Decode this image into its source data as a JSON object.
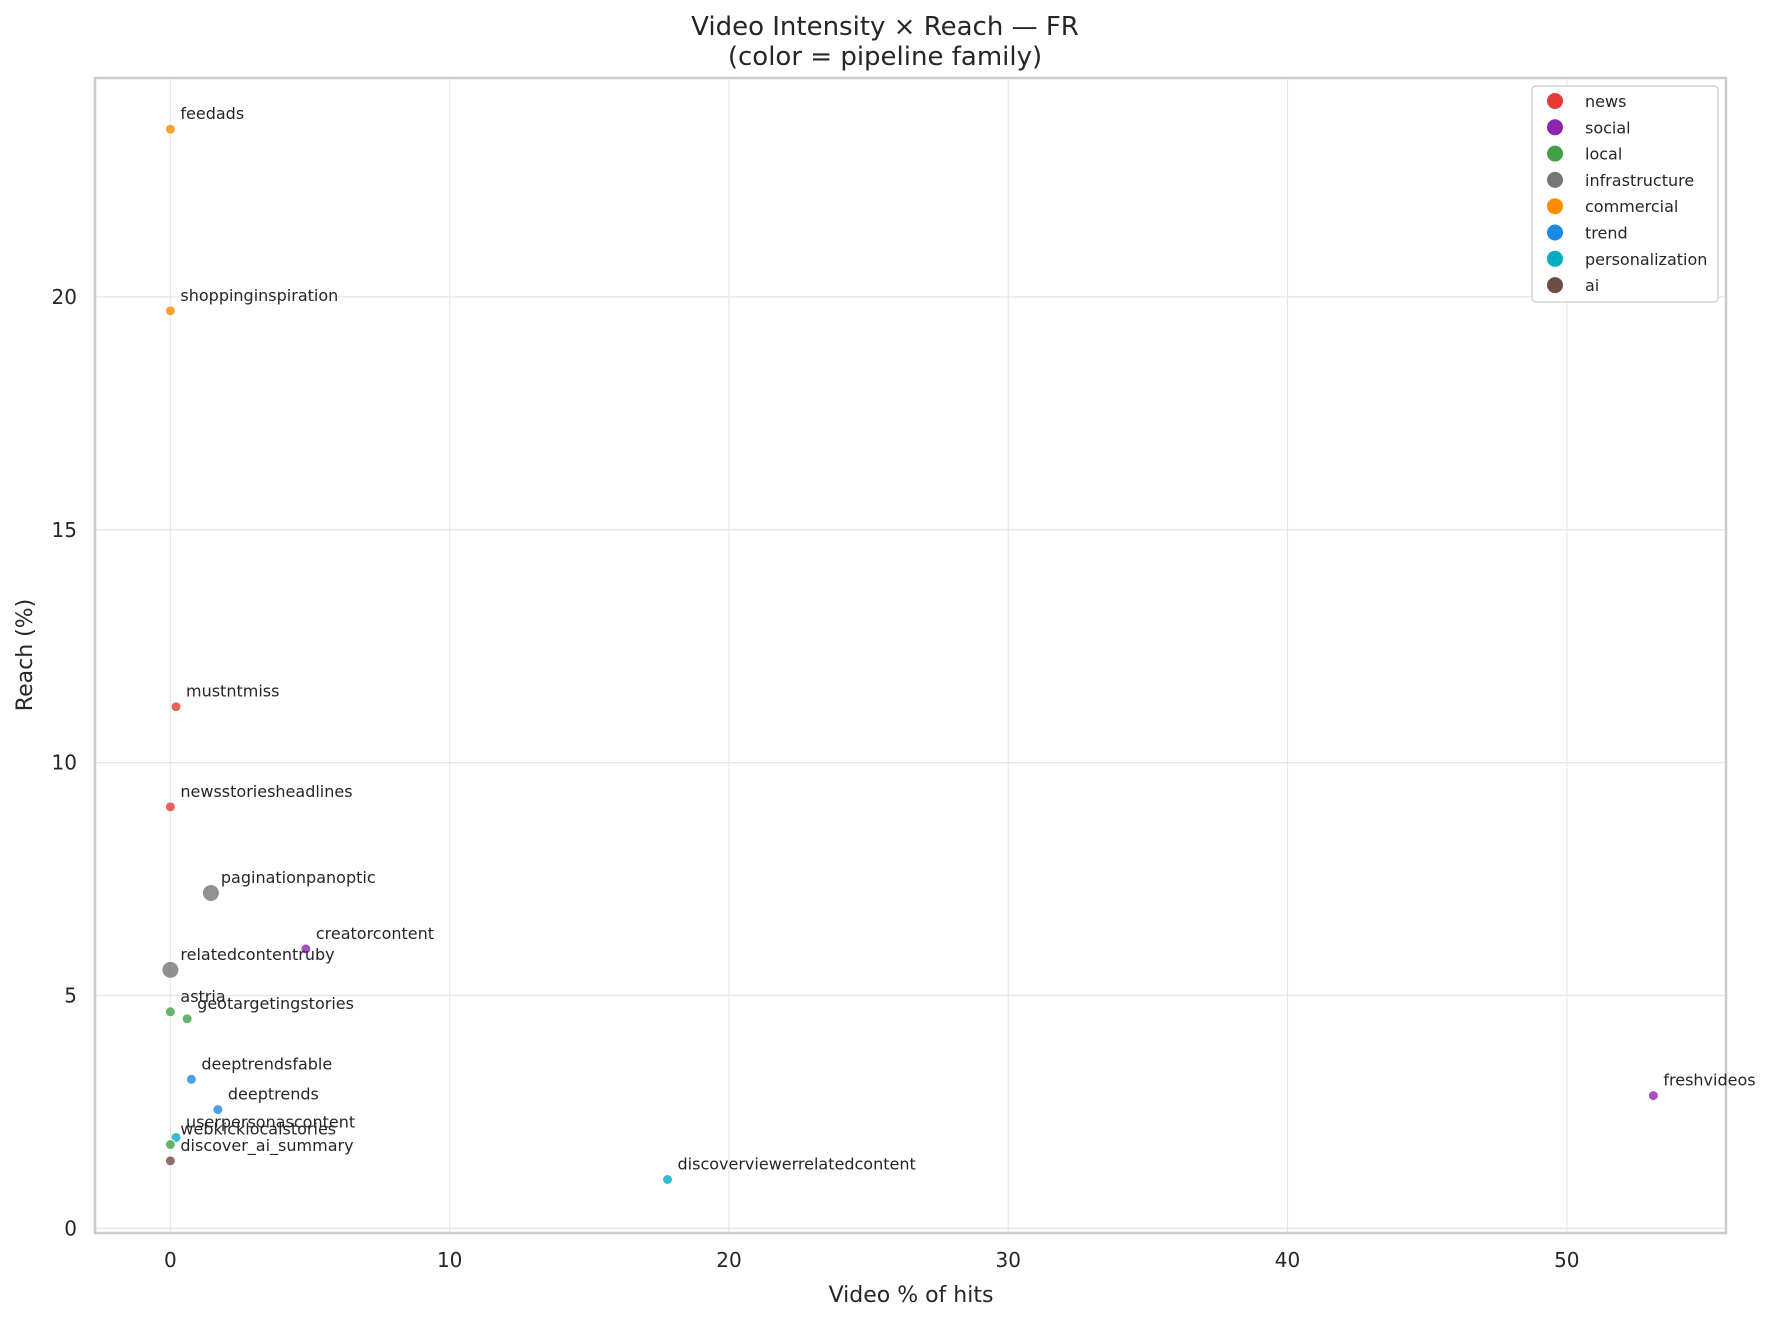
{
  "chart_data": {
    "type": "scatter",
    "title": "Video Intensity × Reach — FR",
    "subtitle": "(color = pipeline family)",
    "xlabel": "Video % of hits",
    "ylabel": "Reach (%)",
    "xlim": [
      -2.7,
      55.7
    ],
    "ylim": [
      -0.1,
      24.7
    ],
    "xticks": [
      0,
      10,
      20,
      30,
      40,
      50
    ],
    "yticks": [
      0,
      5,
      10,
      15,
      20
    ],
    "grid": true,
    "legend_position": "top-right",
    "families": [
      {
        "name": "news",
        "color": "#e53935"
      },
      {
        "name": "social",
        "color": "#8e24aa"
      },
      {
        "name": "local",
        "color": "#43a047"
      },
      {
        "name": "infrastructure",
        "color": "#757575"
      },
      {
        "name": "commercial",
        "color": "#fb8c00"
      },
      {
        "name": "trend",
        "color": "#1e88e5"
      },
      {
        "name": "personalization",
        "color": "#00acc1"
      },
      {
        "name": "ai",
        "color": "#6d4c41"
      }
    ],
    "points": [
      {
        "label": "feedads",
        "x": 0.0,
        "y": 23.6,
        "family": "commercial",
        "size": "small"
      },
      {
        "label": "shoppinginspiration",
        "x": 0.0,
        "y": 19.7,
        "family": "commercial",
        "size": "small"
      },
      {
        "label": "mustntmiss",
        "x": 0.2,
        "y": 11.2,
        "family": "news",
        "size": "small"
      },
      {
        "label": "newsstoriesheadlines",
        "x": 0.0,
        "y": 9.05,
        "family": "news",
        "size": "small"
      },
      {
        "label": "paginationpanoptic",
        "x": 1.45,
        "y": 7.2,
        "family": "infrastructure",
        "size": "large"
      },
      {
        "label": "creatorcontent",
        "x": 4.85,
        "y": 6.0,
        "family": "social",
        "size": "small"
      },
      {
        "label": "relatedcontentruby",
        "x": 0.0,
        "y": 5.55,
        "family": "infrastructure",
        "size": "large"
      },
      {
        "label": "astria",
        "x": 0.0,
        "y": 4.65,
        "family": "local",
        "size": "small"
      },
      {
        "label": "geotargetingstories",
        "x": 0.6,
        "y": 4.5,
        "family": "local",
        "size": "small"
      },
      {
        "label": "deeptrendsfable",
        "x": 0.75,
        "y": 3.2,
        "family": "trend",
        "size": "small"
      },
      {
        "label": "deeptrends",
        "x": 1.7,
        "y": 2.55,
        "family": "trend",
        "size": "small"
      },
      {
        "label": "userpersonascontent",
        "x": 0.2,
        "y": 1.95,
        "family": "personalization",
        "size": "small"
      },
      {
        "label": "webkicklocalstories",
        "x": 0.0,
        "y": 1.8,
        "family": "local",
        "size": "small"
      },
      {
        "label": "discover_ai_summary",
        "x": 0.0,
        "y": 1.45,
        "family": "ai",
        "size": "small"
      },
      {
        "label": "discoverviewerrelatedcontent",
        "x": 17.8,
        "y": 1.05,
        "family": "personalization",
        "size": "small"
      },
      {
        "label": "freshvideos",
        "x": 53.1,
        "y": 2.85,
        "family": "social",
        "size": "small"
      }
    ]
  }
}
